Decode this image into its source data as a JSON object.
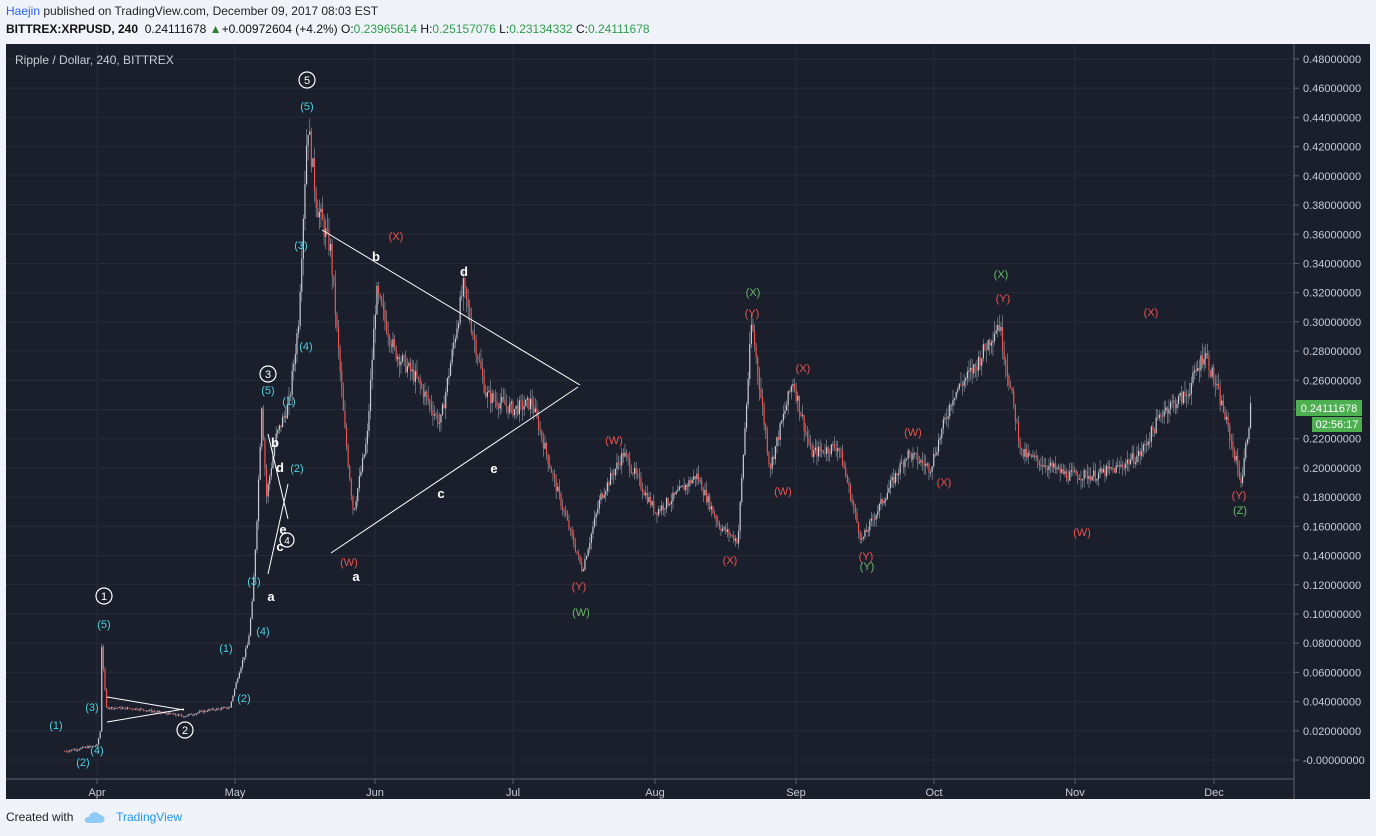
{
  "header": {
    "user": "Haejin",
    "published": "published on TradingView.com, December 09, 2017 08:03 EST",
    "symbol": "BITTREX:XRPUSD, 240",
    "last": "0.24111678",
    "change": "+0.00972604 (+4.2%)",
    "o_label": "O:",
    "o_value": "0.23965614",
    "h_label": "H:",
    "h_value": "0.25157076",
    "l_label": "L:",
    "l_value": "0.23134332",
    "c_label": "C:",
    "c_value": "0.24111678"
  },
  "chart_title": "Ripple / Dollar, 240, BITTREX",
  "price_axis": [
    "0.48000000",
    "0.46000000",
    "0.44000000",
    "0.42000000",
    "0.40000000",
    "0.38000000",
    "0.36000000",
    "0.34000000",
    "0.32000000",
    "0.30000000",
    "0.28000000",
    "0.26000000",
    "0.24000000",
    "0.22000000",
    "0.20000000",
    "0.18000000",
    "0.16000000",
    "0.14000000",
    "0.12000000",
    "0.10000000",
    "0.08000000",
    "0.06000000",
    "0.04000000",
    "0.02000000",
    "-0.00000000"
  ],
  "last_price_label": "0.24111678",
  "countdown_label": "02:56:17",
  "time_axis": [
    "Apr",
    "May",
    "Jun",
    "Jul",
    "Aug",
    "Sep",
    "Oct",
    "Nov",
    "Dec"
  ],
  "footer": {
    "created": "Created with",
    "brand": "TradingView"
  },
  "colors": {
    "background": "#1b1f2b",
    "cyan": "#4dd0e1",
    "red": "#ef5350",
    "green": "#66bb6a",
    "white": "#ffffff",
    "price_badge": "#4caf50"
  },
  "labels": {
    "l1": "(1)",
    "l2": "(2)",
    "l3": "(3)",
    "l4": "(4)",
    "l5": "(5)",
    "lW": "(W)",
    "lX": "(X)",
    "lY": "(Y)",
    "lZ": "(Z)",
    "a": "a",
    "b": "b",
    "c": "c",
    "d": "d",
    "e": "e",
    "c1": "1",
    "c2": "2",
    "c3": "3",
    "c4": "4",
    "c5": "5"
  },
  "chart_data": {
    "type": "candlestick",
    "series": [
      {
        "x": "Mar 25",
        "y": 0.006
      },
      {
        "x": "Apr 1",
        "y": 0.01
      },
      {
        "x": "Apr 2",
        "y": 0.024
      },
      {
        "x": "Apr 2",
        "y": 0.08
      },
      {
        "x": "Apr 3",
        "y": 0.036
      },
      {
        "x": "Apr 10",
        "y": 0.035
      },
      {
        "x": "Apr 20",
        "y": 0.03
      },
      {
        "x": "Apr 25",
        "y": 0.034
      },
      {
        "x": "Apr 30",
        "y": 0.036
      },
      {
        "x": "May 2",
        "y": 0.06
      },
      {
        "x": "May 4",
        "y": 0.08
      },
      {
        "x": "May 5",
        "y": 0.11
      },
      {
        "x": "May 6",
        "y": 0.17
      },
      {
        "x": "May 7",
        "y": 0.245
      },
      {
        "x": "May 8",
        "y": 0.18
      },
      {
        "x": "May 10",
        "y": 0.22
      },
      {
        "x": "May 13",
        "y": 0.245
      },
      {
        "x": "May 15",
        "y": 0.3
      },
      {
        "x": "May 17",
        "y": 0.438
      },
      {
        "x": "May 19",
        "y": 0.38
      },
      {
        "x": "May 22",
        "y": 0.35
      },
      {
        "x": "May 25",
        "y": 0.23
      },
      {
        "x": "May 27",
        "y": 0.17
      },
      {
        "x": "May 30",
        "y": 0.22
      },
      {
        "x": "Jun 1",
        "y": 0.32
      },
      {
        "x": "Jun 5",
        "y": 0.28
      },
      {
        "x": "Jun 10",
        "y": 0.26
      },
      {
        "x": "Jun 15",
        "y": 0.23
      },
      {
        "x": "Jun 20",
        "y": 0.324
      },
      {
        "x": "Jun 25",
        "y": 0.25
      },
      {
        "x": "Jul 1",
        "y": 0.24
      },
      {
        "x": "Jul 5",
        "y": 0.245
      },
      {
        "x": "Jul 10",
        "y": 0.19
      },
      {
        "x": "Jul 16",
        "y": 0.13
      },
      {
        "x": "Jul 20",
        "y": 0.18
      },
      {
        "x": "Jul 25",
        "y": 0.21
      },
      {
        "x": "Aug 1",
        "y": 0.17
      },
      {
        "x": "Aug 5",
        "y": 0.18
      },
      {
        "x": "Aug 10",
        "y": 0.195
      },
      {
        "x": "Aug 15",
        "y": 0.16
      },
      {
        "x": "Aug 19",
        "y": 0.15
      },
      {
        "x": "Aug 22",
        "y": 0.3
      },
      {
        "x": "Aug 26",
        "y": 0.2
      },
      {
        "x": "Aug 31",
        "y": 0.26
      },
      {
        "x": "Sep 4",
        "y": 0.21
      },
      {
        "x": "Sep 10",
        "y": 0.215
      },
      {
        "x": "Sep 15",
        "y": 0.15
      },
      {
        "x": "Sep 20",
        "y": 0.18
      },
      {
        "x": "Sep 25",
        "y": 0.21
      },
      {
        "x": "Sep 30",
        "y": 0.2
      },
      {
        "x": "Oct 5",
        "y": 0.25
      },
      {
        "x": "Oct 10",
        "y": 0.27
      },
      {
        "x": "Oct 15",
        "y": 0.3
      },
      {
        "x": "Oct 20",
        "y": 0.21
      },
      {
        "x": "Oct 30",
        "y": 0.195
      },
      {
        "x": "Nov 5",
        "y": 0.195
      },
      {
        "x": "Nov 10",
        "y": 0.2
      },
      {
        "x": "Nov 15",
        "y": 0.21
      },
      {
        "x": "Nov 20",
        "y": 0.24
      },
      {
        "x": "Nov 25",
        "y": 0.25
      },
      {
        "x": "Nov 29",
        "y": 0.28
      },
      {
        "x": "Dec 3",
        "y": 0.24
      },
      {
        "x": "Dec 7",
        "y": 0.19
      },
      {
        "x": "Dec 9",
        "y": 0.241
      }
    ],
    "ylim": [
      -0.01,
      0.49
    ],
    "xlabel": "",
    "ylabel": "",
    "title": "Ripple / Dollar, 240, BITTREX",
    "grid": true
  }
}
